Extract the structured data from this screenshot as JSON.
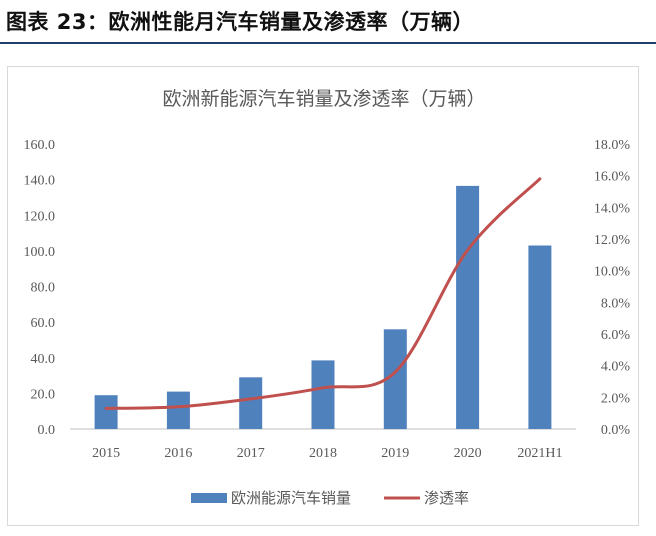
{
  "figure": {
    "caption": "图表 23：欧洲性能月汽车销量及渗透率（万辆）"
  },
  "chart_data": {
    "type": "bar",
    "title": "欧洲新能源汽车销量及渗透率（万辆）",
    "categories": [
      "2015",
      "2016",
      "2017",
      "2018",
      "2019",
      "2020",
      "2021H1"
    ],
    "series": [
      {
        "name": "欧洲能源汽车销量",
        "type": "bar",
        "axis": "left",
        "color": "#4f81bd",
        "values": [
          19.0,
          21.0,
          29.0,
          38.5,
          56.0,
          136.5,
          103.0
        ]
      },
      {
        "name": "渗透率",
        "type": "line",
        "axis": "right",
        "color": "#c0504d",
        "values": [
          0.013,
          0.014,
          0.019,
          0.026,
          0.036,
          0.113,
          0.158
        ]
      }
    ],
    "y_left": {
      "ylim": [
        0,
        160
      ],
      "ticks": [
        "0.0",
        "20.0",
        "40.0",
        "60.0",
        "80.0",
        "100.0",
        "120.0",
        "140.0",
        "160.0"
      ]
    },
    "y_right": {
      "ylim": [
        0,
        0.18
      ],
      "ticks": [
        "0.0%",
        "2.0%",
        "4.0%",
        "6.0%",
        "8.0%",
        "10.0%",
        "12.0%",
        "14.0%",
        "16.0%",
        "18.0%"
      ]
    },
    "grid": false,
    "legend_position": "bottom",
    "axis_text_color": "#595959",
    "axis_line_color": "#bfbfbf"
  }
}
